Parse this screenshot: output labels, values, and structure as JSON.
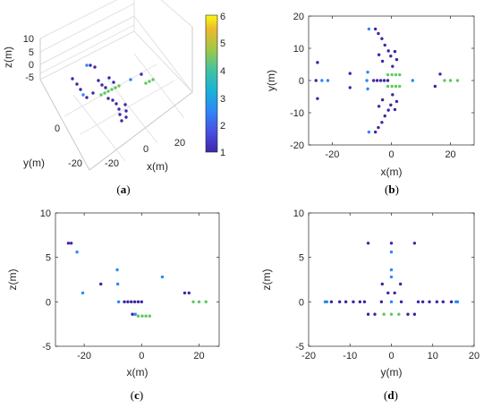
{
  "colors": {
    "c1": "#3e26a8",
    "c2": "#2e87f7",
    "c3": "#19b2d6",
    "c4": "#5ec962",
    "c6": "#f9fb0e"
  },
  "colorbar": {
    "ticks": [
      "1",
      "2",
      "3",
      "4",
      "5",
      "6"
    ],
    "range": [
      1,
      6
    ]
  },
  "chart_data": [
    {
      "type": "scatter",
      "panel": "a",
      "view": "3d",
      "xlabel": "x(m)",
      "ylabel": "y(m)",
      "zlabel": "z(m)",
      "xticks": [
        "-20",
        "0",
        "20"
      ],
      "yticks": [
        "-20",
        "0"
      ],
      "zticks": [
        "-5",
        "0",
        "5",
        "10"
      ],
      "zlim": [
        -5,
        10
      ],
      "grid": true,
      "caption": {
        "open": "(",
        "letter": "a",
        "close": ")"
      }
    },
    {
      "type": "scatter",
      "panel": "b",
      "xlabel": "x(m)",
      "ylabel": "y(m)",
      "xlim": [
        -28,
        28
      ],
      "ylim": [
        -20,
        20
      ],
      "xticks": [
        "-20",
        "0",
        "20"
      ],
      "yticks": [
        "-20",
        "-10",
        "0",
        "10",
        "20"
      ],
      "xtickvals": [
        -20,
        0,
        20
      ],
      "ytickvals": [
        -20,
        -10,
        0,
        10,
        20
      ],
      "points": [
        {
          "x": -25.5,
          "y": 0,
          "c": 1
        },
        {
          "x": -23.5,
          "y": 0,
          "c": 2
        },
        {
          "x": -21.5,
          "y": 0,
          "c": 2
        },
        {
          "x": -25,
          "y": 5.6,
          "c": 1
        },
        {
          "x": -25,
          "y": -5.6,
          "c": 1
        },
        {
          "x": -8,
          "y": 2.6,
          "c": 2
        },
        {
          "x": -8,
          "y": -2.6,
          "c": 2
        },
        {
          "x": -14,
          "y": 2.2,
          "c": 1
        },
        {
          "x": -14,
          "y": -2.2,
          "c": 1
        },
        {
          "x": -8.3,
          "y": 0,
          "c": 2
        },
        {
          "x": -6,
          "y": 0,
          "c": 1
        },
        {
          "x": -4.8,
          "y": 0,
          "c": 1
        },
        {
          "x": -3.6,
          "y": 0,
          "c": 1
        },
        {
          "x": -2.4,
          "y": 0,
          "c": 1
        },
        {
          "x": -1.2,
          "y": 0,
          "c": 1
        },
        {
          "x": 7.2,
          "y": 0,
          "c": 2
        },
        {
          "x": 14.8,
          "y": -1.8,
          "c": 1
        },
        {
          "x": 16.5,
          "y": 2,
          "c": 1
        },
        {
          "x": 18,
          "y": 0,
          "c": 4
        },
        {
          "x": 20,
          "y": 0,
          "c": 4
        },
        {
          "x": 22.4,
          "y": 0,
          "c": 4
        },
        {
          "x": -1.2,
          "y": 1.8,
          "c": 4
        },
        {
          "x": 0.2,
          "y": 1.8,
          "c": 4
        },
        {
          "x": 1.5,
          "y": 1.8,
          "c": 4
        },
        {
          "x": 2.8,
          "y": 1.8,
          "c": 4
        },
        {
          "x": -1.2,
          "y": -1.8,
          "c": 4
        },
        {
          "x": 0.2,
          "y": -1.8,
          "c": 4
        },
        {
          "x": 1.5,
          "y": -1.8,
          "c": 4
        },
        {
          "x": 2.8,
          "y": -1.8,
          "c": 4
        },
        {
          "x": -7.6,
          "y": 16,
          "c": 2
        },
        {
          "x": -5.4,
          "y": 16,
          "c": 1
        },
        {
          "x": -4.4,
          "y": 14.6,
          "c": 1
        },
        {
          "x": -3.2,
          "y": 13,
          "c": 1
        },
        {
          "x": -2.2,
          "y": 11,
          "c": 1
        },
        {
          "x": -1,
          "y": 9.2,
          "c": 1
        },
        {
          "x": -0.2,
          "y": 7.6,
          "c": 1
        },
        {
          "x": -3,
          "y": 6,
          "c": 1
        },
        {
          "x": -4.2,
          "y": 8,
          "c": 1
        },
        {
          "x": 1.2,
          "y": 9,
          "c": 1
        },
        {
          "x": 1.8,
          "y": 6.5,
          "c": 1
        },
        {
          "x": 0.4,
          "y": 4.4,
          "c": 1
        },
        {
          "x": -7.6,
          "y": -16,
          "c": 2
        },
        {
          "x": -5.4,
          "y": -16,
          "c": 1
        },
        {
          "x": -4.4,
          "y": -14.6,
          "c": 1
        },
        {
          "x": -3.2,
          "y": -13,
          "c": 1
        },
        {
          "x": -2.2,
          "y": -11,
          "c": 1
        },
        {
          "x": -1,
          "y": -9.2,
          "c": 1
        },
        {
          "x": -0.2,
          "y": -7.6,
          "c": 1
        },
        {
          "x": -3,
          "y": -6,
          "c": 1
        },
        {
          "x": -4.2,
          "y": -8,
          "c": 1
        },
        {
          "x": 1.2,
          "y": -9,
          "c": 1
        },
        {
          "x": 1.8,
          "y": -6.5,
          "c": 1
        },
        {
          "x": 0.4,
          "y": -4.4,
          "c": 1
        }
      ],
      "caption": {
        "open": "(",
        "letter": "b",
        "close": ")"
      }
    },
    {
      "type": "scatter",
      "panel": "c",
      "xlabel": "x(m)",
      "ylabel": "z(m)",
      "xlim": [
        -30,
        27
      ],
      "ylim": [
        -5,
        10
      ],
      "xticks": [
        "-20",
        "0",
        "20"
      ],
      "yticks": [
        "-5",
        "0",
        "5",
        "10"
      ],
      "xtickvals": [
        -20,
        0,
        20
      ],
      "ytickvals": [
        -5,
        0,
        5,
        10
      ],
      "points": [
        {
          "x": -25.5,
          "y": 6.6,
          "c": 1
        },
        {
          "x": -24.5,
          "y": 6.6,
          "c": 1
        },
        {
          "x": -22.5,
          "y": 5.6,
          "c": 2
        },
        {
          "x": -20.5,
          "y": 1,
          "c": 2
        },
        {
          "x": -14.2,
          "y": 2,
          "c": 1
        },
        {
          "x": -8.5,
          "y": 3.6,
          "c": 2
        },
        {
          "x": -8.3,
          "y": 2,
          "c": 2
        },
        {
          "x": -8,
          "y": 0,
          "c": 2
        },
        {
          "x": -6,
          "y": 0,
          "c": 1
        },
        {
          "x": -4.8,
          "y": 0,
          "c": 1
        },
        {
          "x": -3.6,
          "y": 0,
          "c": 1
        },
        {
          "x": -2.4,
          "y": 0,
          "c": 1
        },
        {
          "x": -1.2,
          "y": 0,
          "c": 1
        },
        {
          "x": 0,
          "y": 0,
          "c": 1
        },
        {
          "x": -3.2,
          "y": -1.4,
          "c": 1
        },
        {
          "x": -2.2,
          "y": -1.4,
          "c": 2
        },
        {
          "x": -1.2,
          "y": -1.6,
          "c": 4
        },
        {
          "x": 0.2,
          "y": -1.6,
          "c": 4
        },
        {
          "x": 1.5,
          "y": -1.6,
          "c": 4
        },
        {
          "x": 2.8,
          "y": -1.6,
          "c": 4
        },
        {
          "x": 7.2,
          "y": 2.8,
          "c": 2
        },
        {
          "x": 15,
          "y": 1,
          "c": 1
        },
        {
          "x": 16.5,
          "y": 1,
          "c": 1
        },
        {
          "x": 18,
          "y": 0,
          "c": 4
        },
        {
          "x": 20,
          "y": 0,
          "c": 4
        },
        {
          "x": 22.4,
          "y": 0,
          "c": 4
        }
      ],
      "caption": {
        "open": "(",
        "letter": "c",
        "close": ")"
      }
    },
    {
      "type": "scatter",
      "panel": "d",
      "xlabel": "y(m)",
      "ylabel": "z(m)",
      "xlim": [
        -20,
        20
      ],
      "ylim": [
        -5,
        10
      ],
      "xticks": [
        "-20",
        "-10",
        "0",
        "10",
        "20"
      ],
      "yticks": [
        "-5",
        "0",
        "5",
        "10"
      ],
      "xtickvals": [
        -20,
        -10,
        0,
        10,
        20
      ],
      "ytickvals": [
        -5,
        0,
        5,
        10
      ],
      "points": [
        {
          "x": -16,
          "y": 0,
          "c": 2
        },
        {
          "x": -15.6,
          "y": 0,
          "c": 2
        },
        {
          "x": -14.5,
          "y": 0,
          "c": 1
        },
        {
          "x": -12.5,
          "y": 0,
          "c": 1
        },
        {
          "x": -11,
          "y": 0,
          "c": 1
        },
        {
          "x": -9.2,
          "y": 0,
          "c": 1
        },
        {
          "x": -7.6,
          "y": 0,
          "c": 1
        },
        {
          "x": -6.5,
          "y": 0,
          "c": 1
        },
        {
          "x": -5.6,
          "y": 6.6,
          "c": 1
        },
        {
          "x": -5.6,
          "y": -1.4,
          "c": 1
        },
        {
          "x": -4,
          "y": -1.4,
          "c": 1
        },
        {
          "x": -2.4,
          "y": 0,
          "c": 1
        },
        {
          "x": -2.2,
          "y": 2,
          "c": 1
        },
        {
          "x": -1.8,
          "y": -1.4,
          "c": 4
        },
        {
          "x": -0.8,
          "y": 1,
          "c": 1
        },
        {
          "x": 0,
          "y": 6.6,
          "c": 1
        },
        {
          "x": 0,
          "y": 5.6,
          "c": 2
        },
        {
          "x": 0,
          "y": 3.6,
          "c": 2
        },
        {
          "x": 0,
          "y": 2.8,
          "c": 2
        },
        {
          "x": 0,
          "y": 0,
          "c": 2
        },
        {
          "x": 0,
          "y": -1.4,
          "c": 4
        },
        {
          "x": 0.8,
          "y": 1,
          "c": 1
        },
        {
          "x": 1.8,
          "y": -1.4,
          "c": 4
        },
        {
          "x": 2.2,
          "y": 2,
          "c": 1
        },
        {
          "x": 2.4,
          "y": 0,
          "c": 1
        },
        {
          "x": 4,
          "y": -1.4,
          "c": 1
        },
        {
          "x": 5.6,
          "y": 6.6,
          "c": 1
        },
        {
          "x": 5.6,
          "y": -1.4,
          "c": 1
        },
        {
          "x": 6.5,
          "y": 0,
          "c": 1
        },
        {
          "x": 7.6,
          "y": 0,
          "c": 1
        },
        {
          "x": 9.2,
          "y": 0,
          "c": 1
        },
        {
          "x": 11,
          "y": 0,
          "c": 1
        },
        {
          "x": 12.5,
          "y": 0,
          "c": 1
        },
        {
          "x": 14.5,
          "y": 0,
          "c": 1
        },
        {
          "x": 15.6,
          "y": 0,
          "c": 2
        },
        {
          "x": 16,
          "y": 0,
          "c": 2
        }
      ],
      "caption": {
        "open": "(",
        "letter": "d",
        "close": ")"
      }
    }
  ]
}
